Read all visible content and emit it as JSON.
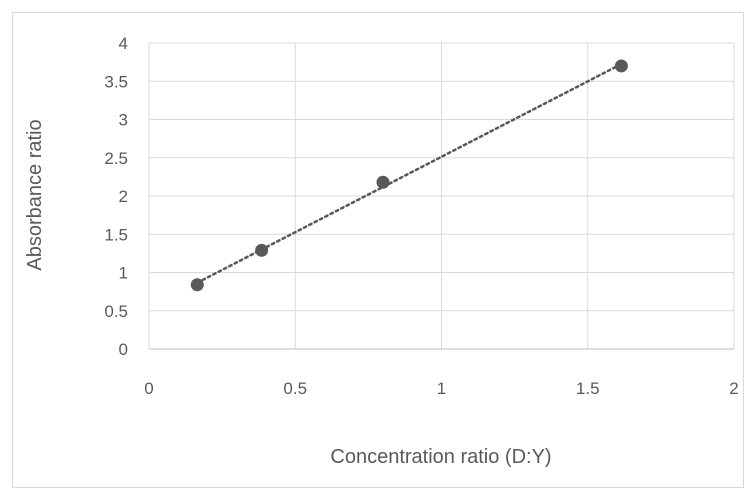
{
  "chart_data": {
    "type": "scatter",
    "title": "",
    "xlabel": "Concentration ratio (D:Y)",
    "ylabel": "Absorbance ratio",
    "xlim": [
      0,
      2
    ],
    "ylim": [
      0,
      4
    ],
    "x_ticks": [
      "0",
      "0.5",
      "1",
      "1.5",
      "2"
    ],
    "y_ticks": [
      "0",
      "0.5",
      "1",
      "1.5",
      "2",
      "2.5",
      "3",
      "3.5",
      "4"
    ],
    "grid": true,
    "legend": "none",
    "series": [
      {
        "x": [
          0.165,
          0.385,
          0.8,
          1.615
        ],
        "y": [
          0.84,
          1.29,
          2.18,
          3.7
        ],
        "color": "#595959",
        "trendline": "linear-dotted"
      }
    ]
  }
}
